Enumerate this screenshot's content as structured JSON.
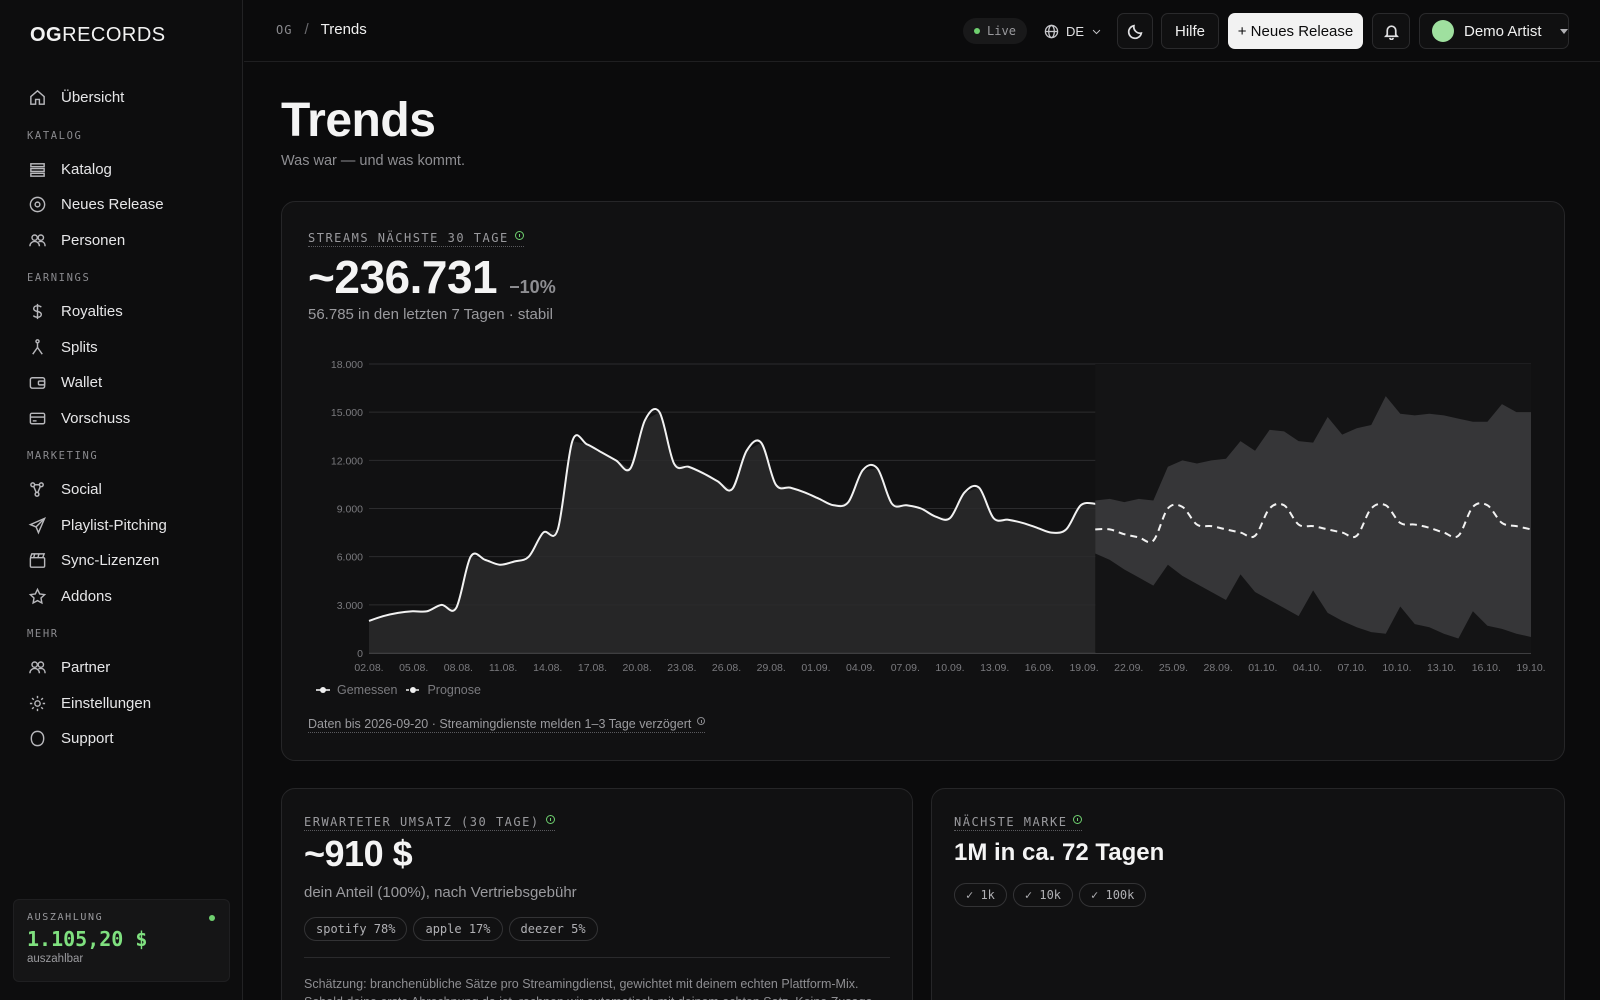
{
  "logo": {
    "bold": "OG",
    "light": "RECORDS"
  },
  "sidebar": {
    "items": [
      {
        "label": "Übersicht",
        "icon": "home-icon"
      }
    ],
    "sections": [
      {
        "title": "KATALOG",
        "items": [
          {
            "label": "Katalog",
            "icon": "catalog-icon"
          },
          {
            "label": "Neues Release",
            "icon": "disc-icon"
          },
          {
            "label": "Personen",
            "icon": "people-icon"
          }
        ]
      },
      {
        "title": "EARNINGS",
        "items": [
          {
            "label": "Royalties",
            "icon": "dollar-icon"
          },
          {
            "label": "Splits",
            "icon": "split-icon"
          },
          {
            "label": "Wallet",
            "icon": "wallet-icon"
          },
          {
            "label": "Vorschuss",
            "icon": "card-icon"
          }
        ]
      },
      {
        "title": "MARKETING",
        "items": [
          {
            "label": "Social",
            "icon": "share-icon"
          },
          {
            "label": "Playlist-Pitching",
            "icon": "send-icon"
          },
          {
            "label": "Sync-Lizenzen",
            "icon": "clapper-icon"
          },
          {
            "label": "Addons",
            "icon": "star-icon"
          }
        ]
      },
      {
        "title": "MEHR",
        "items": [
          {
            "label": "Partner",
            "icon": "partner-icon"
          },
          {
            "label": "Einstellungen",
            "icon": "gear-icon"
          },
          {
            "label": "Support",
            "icon": "support-icon"
          }
        ]
      }
    ],
    "payout": {
      "label": "AUSZAHLUNG",
      "amount": "1.105,20 $",
      "sub": "auszahlbar",
      "status_color": "#6fd06f"
    }
  },
  "topbar": {
    "breadcrumb_root": "OG",
    "breadcrumb_sep": "/",
    "breadcrumb_current": "Trends",
    "live_label": "Live",
    "language": "DE",
    "help_label": "Hilfe",
    "new_release_label": "+ Neues Release",
    "artist_name": "Demo Artist"
  },
  "page": {
    "title": "Trends",
    "subtitle": "Was war — und was kommt."
  },
  "streams_card": {
    "label": "STREAMS NÄCHSTE 30 TAGE",
    "value": "~236.731",
    "delta": "−10%",
    "sub": "56.785 in den letzten 7 Tagen · stabil",
    "legend_measured": "Gemessen",
    "legend_forecast": "Prognose",
    "footnote": "Daten bis 2026-09-20 · Streamingdienste melden 1–3 Tage verzögert"
  },
  "chart_data": {
    "type": "line",
    "ylim": [
      0,
      18000
    ],
    "yticks": [
      0,
      3000,
      6000,
      9000,
      12000,
      15000,
      18000
    ],
    "ytick_labels": [
      "0",
      "3.000",
      "6.000",
      "9.000",
      "12.000",
      "15.000",
      "18.000"
    ],
    "xtick_labels": [
      "02.08.",
      "05.08.",
      "08.08.",
      "11.08.",
      "14.08.",
      "17.08.",
      "20.08.",
      "23.08.",
      "26.08.",
      "29.08.",
      "01.09.",
      "04.09.",
      "07.09.",
      "10.09.",
      "13.09.",
      "16.09.",
      "19.09.",
      "22.09.",
      "25.09.",
      "28.09.",
      "01.10.",
      "04.10.",
      "07.10.",
      "10.10.",
      "13.10.",
      "16.10.",
      "19.10."
    ],
    "grid": true,
    "series": [
      {
        "name": "Gemessen",
        "style": "solid",
        "values": [
          2000,
          2300,
          2500,
          2600,
          2600,
          3000,
          2800,
          6000,
          5800,
          5500,
          5700,
          6000,
          7500,
          7700,
          13200,
          13000,
          12500,
          12000,
          11500,
          14500,
          15000,
          11800,
          11600,
          11200,
          10700,
          10200,
          12600,
          13100,
          10500,
          10300,
          10000,
          9600,
          9200,
          9400,
          11400,
          11500,
          9300,
          9200,
          9000,
          8500,
          8400,
          10000,
          10300,
          8400,
          8300,
          8100,
          7800,
          7500,
          7700,
          9200,
          9300
        ]
      },
      {
        "name": "Prognose",
        "style": "dashed",
        "values": [
          7700,
          7700,
          7400,
          7200,
          7000,
          9000,
          9100,
          8000,
          7900,
          7700,
          7500,
          7300,
          9000,
          9200,
          8000,
          7900,
          7700,
          7500,
          7300,
          9000,
          9200,
          8100,
          8000,
          7800,
          7500,
          7300,
          9100,
          9200,
          8100,
          7900,
          7700
        ],
        "band_upper": [
          9500,
          9600,
          9400,
          9600,
          9500,
          11600,
          12000,
          11800,
          12000,
          12100,
          13200,
          12600,
          13900,
          13800,
          13200,
          13100,
          14700,
          13600,
          14000,
          14200,
          16000,
          14900,
          14800,
          14900,
          14800,
          14600,
          14400,
          14400,
          15500,
          15000,
          15000
        ],
        "band_lower": [
          6200,
          5800,
          5200,
          4700,
          4200,
          5500,
          4800,
          4300,
          3800,
          3300,
          4900,
          3800,
          3300,
          2800,
          2300,
          3900,
          2500,
          2000,
          1600,
          1300,
          1200,
          2900,
          1800,
          1600,
          1200,
          900,
          2600,
          1700,
          1500,
          1200,
          1000
        ]
      }
    ]
  },
  "revenue_card": {
    "label": "ERWARTETER UMSATZ (30 TAGE)",
    "value": "~910 $",
    "sub": "dein Anteil (100%), nach Vertriebsgebühr",
    "pills": [
      "spotify 78%",
      "apple 17%",
      "deezer 5%"
    ],
    "note": "Schätzung: branchenübliche Sätze pro Streamingdienst, gewichtet mit deinem echten Plattform-Mix. Sobald deine erste Abrechnung da ist, rechnen wir automatisch mit deinem echten Satz. Keine Zusage."
  },
  "milestone_card": {
    "label": "NÄCHSTE MARKE",
    "value": "1M in ca. 72 Tagen",
    "pills": [
      "✓ 1k",
      "✓ 10k",
      "✓ 100k"
    ]
  },
  "colors": {
    "accent_green": "#6fd06f",
    "background": "#0b0b0c",
    "card": "#111112"
  }
}
